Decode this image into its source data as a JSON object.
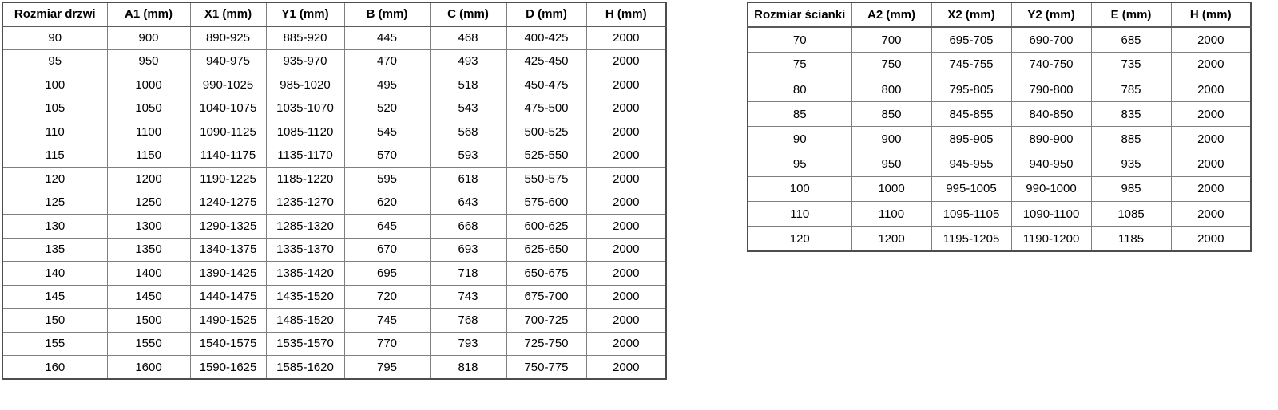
{
  "door_table": {
    "name": "door-size-table",
    "headers": [
      "Rozmiar drzwi",
      "A1 (mm)",
      "X1 (mm)",
      "Y1 (mm)",
      "B (mm)",
      "C (mm)",
      "D (mm)",
      "H (mm)"
    ],
    "rows": [
      [
        "90",
        "900",
        "890-925",
        "885-920",
        "445",
        "468",
        "400-425",
        "2000"
      ],
      [
        "95",
        "950",
        "940-975",
        "935-970",
        "470",
        "493",
        "425-450",
        "2000"
      ],
      [
        "100",
        "1000",
        "990-1025",
        "985-1020",
        "495",
        "518",
        "450-475",
        "2000"
      ],
      [
        "105",
        "1050",
        "1040-1075",
        "1035-1070",
        "520",
        "543",
        "475-500",
        "2000"
      ],
      [
        "110",
        "1100",
        "1090-1125",
        "1085-1120",
        "545",
        "568",
        "500-525",
        "2000"
      ],
      [
        "115",
        "1150",
        "1140-1175",
        "1135-1170",
        "570",
        "593",
        "525-550",
        "2000"
      ],
      [
        "120",
        "1200",
        "1190-1225",
        "1185-1220",
        "595",
        "618",
        "550-575",
        "2000"
      ],
      [
        "125",
        "1250",
        "1240-1275",
        "1235-1270",
        "620",
        "643",
        "575-600",
        "2000"
      ],
      [
        "130",
        "1300",
        "1290-1325",
        "1285-1320",
        "645",
        "668",
        "600-625",
        "2000"
      ],
      [
        "135",
        "1350",
        "1340-1375",
        "1335-1370",
        "670",
        "693",
        "625-650",
        "2000"
      ],
      [
        "140",
        "1400",
        "1390-1425",
        "1385-1420",
        "695",
        "718",
        "650-675",
        "2000"
      ],
      [
        "145",
        "1450",
        "1440-1475",
        "1435-1520",
        "720",
        "743",
        "675-700",
        "2000"
      ],
      [
        "150",
        "1500",
        "1490-1525",
        "1485-1520",
        "745",
        "768",
        "700-725",
        "2000"
      ],
      [
        "155",
        "1550",
        "1540-1575",
        "1535-1570",
        "770",
        "793",
        "725-750",
        "2000"
      ],
      [
        "160",
        "1600",
        "1590-1625",
        "1585-1620",
        "795",
        "818",
        "750-775",
        "2000"
      ]
    ]
  },
  "wall_table": {
    "name": "wall-size-table",
    "headers": [
      "Rozmiar ścianki",
      "A2 (mm)",
      "X2 (mm)",
      "Y2 (mm)",
      "E (mm)",
      "H (mm)"
    ],
    "rows": [
      [
        "70",
        "700",
        "695-705",
        "690-700",
        "685",
        "2000"
      ],
      [
        "75",
        "750",
        "745-755",
        "740-750",
        "735",
        "2000"
      ],
      [
        "80",
        "800",
        "795-805",
        "790-800",
        "785",
        "2000"
      ],
      [
        "85",
        "850",
        "845-855",
        "840-850",
        "835",
        "2000"
      ],
      [
        "90",
        "900",
        "895-905",
        "890-900",
        "885",
        "2000"
      ],
      [
        "95",
        "950",
        "945-955",
        "940-950",
        "935",
        "2000"
      ],
      [
        "100",
        "1000",
        "995-1005",
        "990-1000",
        "985",
        "2000"
      ],
      [
        "110",
        "1100",
        "1095-1105",
        "1090-1100",
        "1085",
        "2000"
      ],
      [
        "120",
        "1200",
        "1195-1205",
        "1190-1200",
        "1185",
        "2000"
      ]
    ]
  },
  "colors": {
    "background": "#ffffff",
    "text": "#000000",
    "border_inner": "#7f7f7f",
    "border_outer": "#4d4d4d"
  }
}
